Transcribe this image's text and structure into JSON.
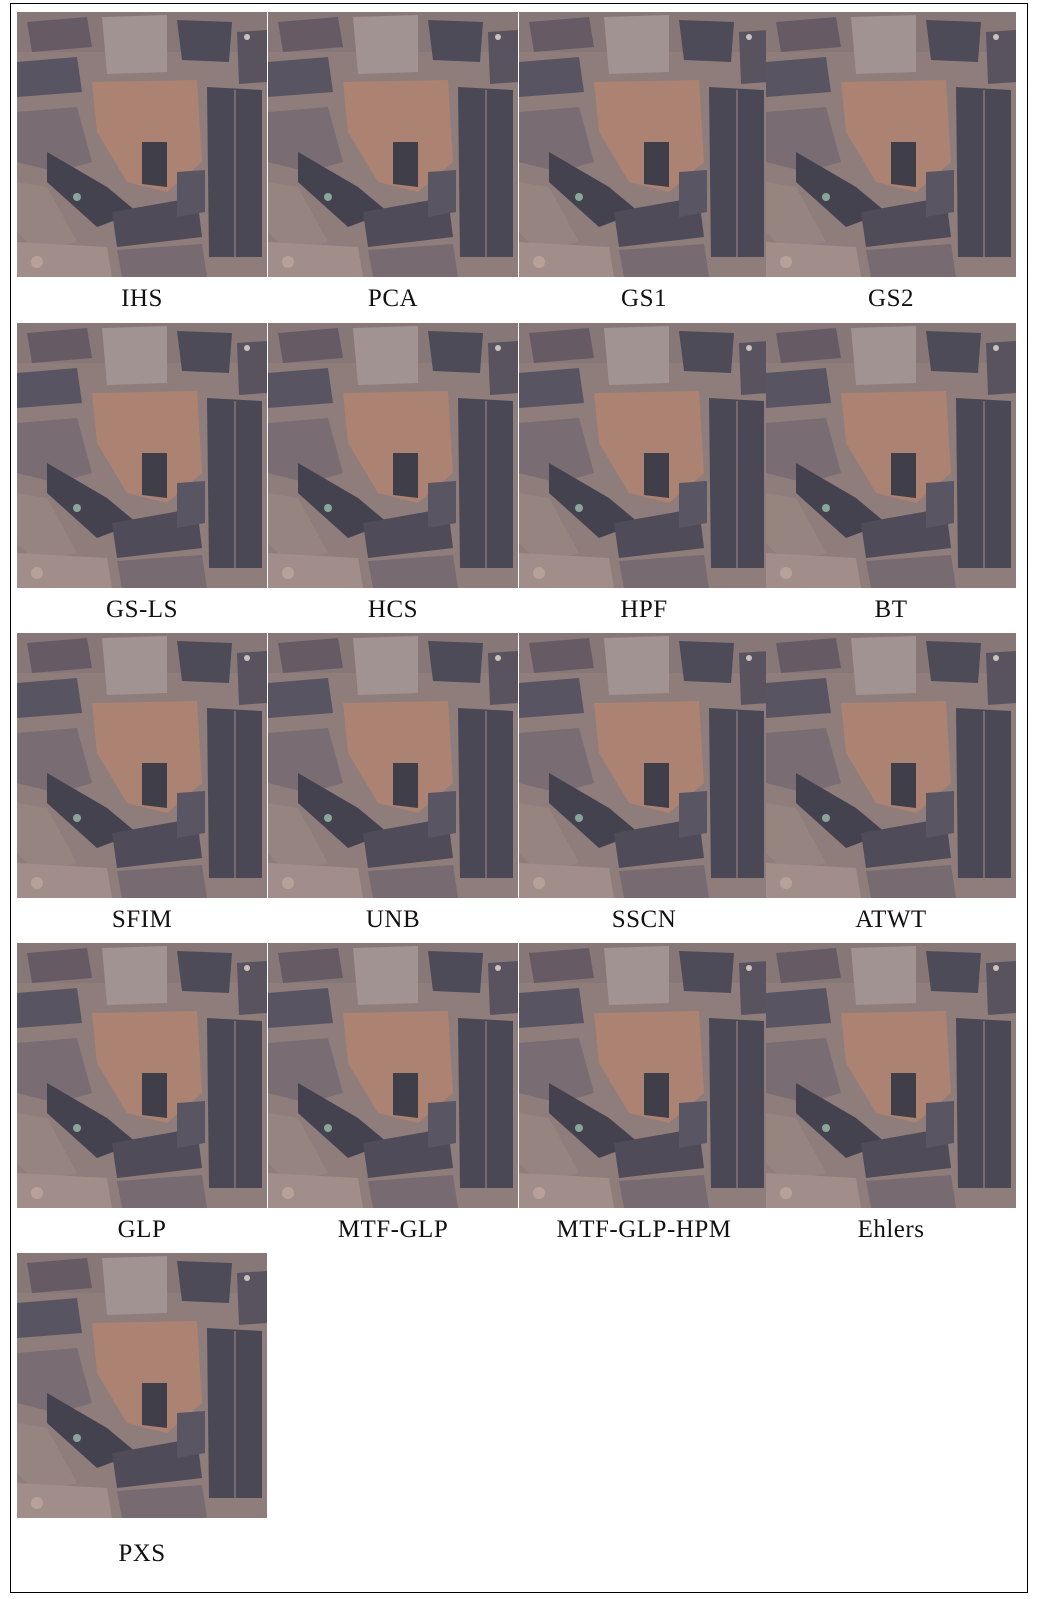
{
  "panels": [
    {
      "label": "IHS"
    },
    {
      "label": "PCA"
    },
    {
      "label": "GS1"
    },
    {
      "label": "GS2"
    },
    {
      "label": "GS-LS"
    },
    {
      "label": "HCS"
    },
    {
      "label": "HPF"
    },
    {
      "label": "BT"
    },
    {
      "label": "SFIM"
    },
    {
      "label": "UNB"
    },
    {
      "label": "SSCN"
    },
    {
      "label": "ATWT"
    },
    {
      "label": "GLP"
    },
    {
      "label": "MTF-GLP"
    },
    {
      "label": "MTF-GLP-HPM"
    },
    {
      "label": "Ehlers"
    },
    {
      "label": "PXS"
    }
  ]
}
